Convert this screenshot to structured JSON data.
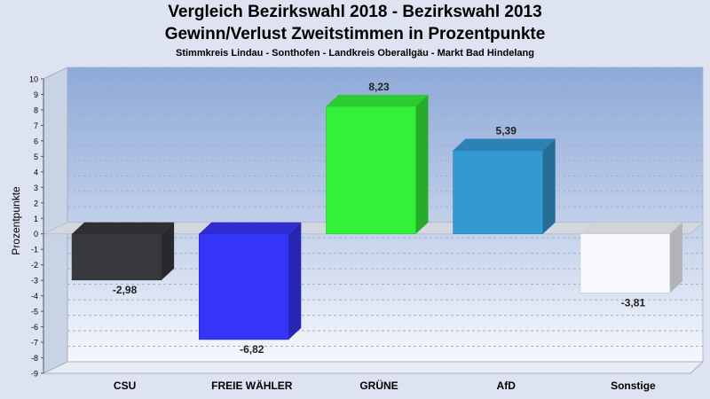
{
  "chart_data": {
    "type": "bar",
    "title_lines": [
      "Vergleich Bezirkswahl 2018 - Bezirkswahl 2013",
      "Gewinn/Verlust Zweitstimmen in Prozentpunkte"
    ],
    "subtitle": "Stimmkreis Lindau - Sonthofen - Landkreis Oberallgäu - Markt Bad Hindelang",
    "ylabel": "Prozentpunkte",
    "xlabel": "",
    "ylim": [
      -9,
      10
    ],
    "yticks": [
      10,
      9,
      8,
      7,
      6,
      5,
      4,
      3,
      2,
      1,
      0,
      -1,
      -2,
      -3,
      -4,
      -5,
      -6,
      -7,
      -8,
      -9
    ],
    "grid": true,
    "categories": [
      "CSU",
      "FREIE WÄHLER",
      "GRÜNE",
      "AfD",
      "Sonstige"
    ],
    "values": [
      -2.98,
      -6.82,
      8.23,
      5.39,
      -3.81
    ],
    "value_labels": [
      "-2,98",
      "-6,82",
      "8,23",
      "5,39",
      "-3,81"
    ],
    "colors": [
      "#38393d",
      "#3535f7",
      "#33f03a",
      "#3399d2",
      "#f7f8fd"
    ]
  }
}
